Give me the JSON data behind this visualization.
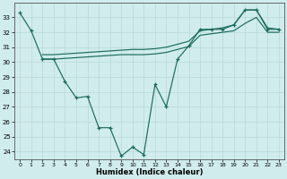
{
  "xlabel": "Humidex (Indice chaleur)",
  "color": "#1a6b5e",
  "bg_color": "#d0ecec",
  "grid_color": "#b8d8d8",
  "ylim": [
    23.5,
    34.0
  ],
  "xlim": [
    -0.5,
    23.5
  ],
  "yticks": [
    24,
    25,
    26,
    27,
    28,
    29,
    30,
    31,
    32,
    33
  ],
  "xticks": [
    0,
    1,
    2,
    3,
    4,
    5,
    6,
    7,
    8,
    9,
    10,
    11,
    12,
    13,
    14,
    15,
    16,
    17,
    18,
    19,
    20,
    21,
    22,
    23
  ],
  "zigzag_x": [
    0,
    1,
    2,
    3,
    4,
    5,
    6,
    7,
    8,
    9,
    10,
    11,
    12,
    13,
    14,
    15,
    16,
    17,
    18,
    19,
    20,
    21,
    22,
    23
  ],
  "zigzag_y": [
    33.3,
    32.1,
    30.2,
    30.2,
    28.7,
    27.6,
    27.7,
    25.6,
    25.6,
    23.7,
    24.3,
    23.8,
    28.5,
    27.0,
    30.2,
    31.1,
    32.2,
    32.2,
    32.2,
    32.5,
    33.5,
    33.5,
    32.2,
    32.2
  ],
  "upper_x": [
    2,
    3,
    4,
    5,
    6,
    7,
    8,
    9,
    10,
    11,
    12,
    13,
    14,
    15,
    16,
    17,
    18,
    19,
    20,
    21,
    22,
    23
  ],
  "upper_y": [
    30.5,
    30.5,
    30.55,
    30.6,
    30.65,
    30.7,
    30.75,
    30.8,
    30.85,
    30.85,
    30.9,
    31.0,
    31.2,
    31.4,
    32.1,
    32.2,
    32.3,
    32.5,
    33.5,
    33.5,
    32.3,
    32.2
  ],
  "lower_x": [
    2,
    3,
    4,
    5,
    6,
    7,
    8,
    9,
    10,
    11,
    12,
    13,
    14,
    15,
    16,
    17,
    18,
    19,
    20,
    21,
    22,
    23
  ],
  "lower_y": [
    30.2,
    30.2,
    30.25,
    30.3,
    30.35,
    30.4,
    30.45,
    30.5,
    30.5,
    30.5,
    30.55,
    30.65,
    30.85,
    31.05,
    31.8,
    31.9,
    32.0,
    32.1,
    32.6,
    33.0,
    32.0,
    32.0
  ]
}
